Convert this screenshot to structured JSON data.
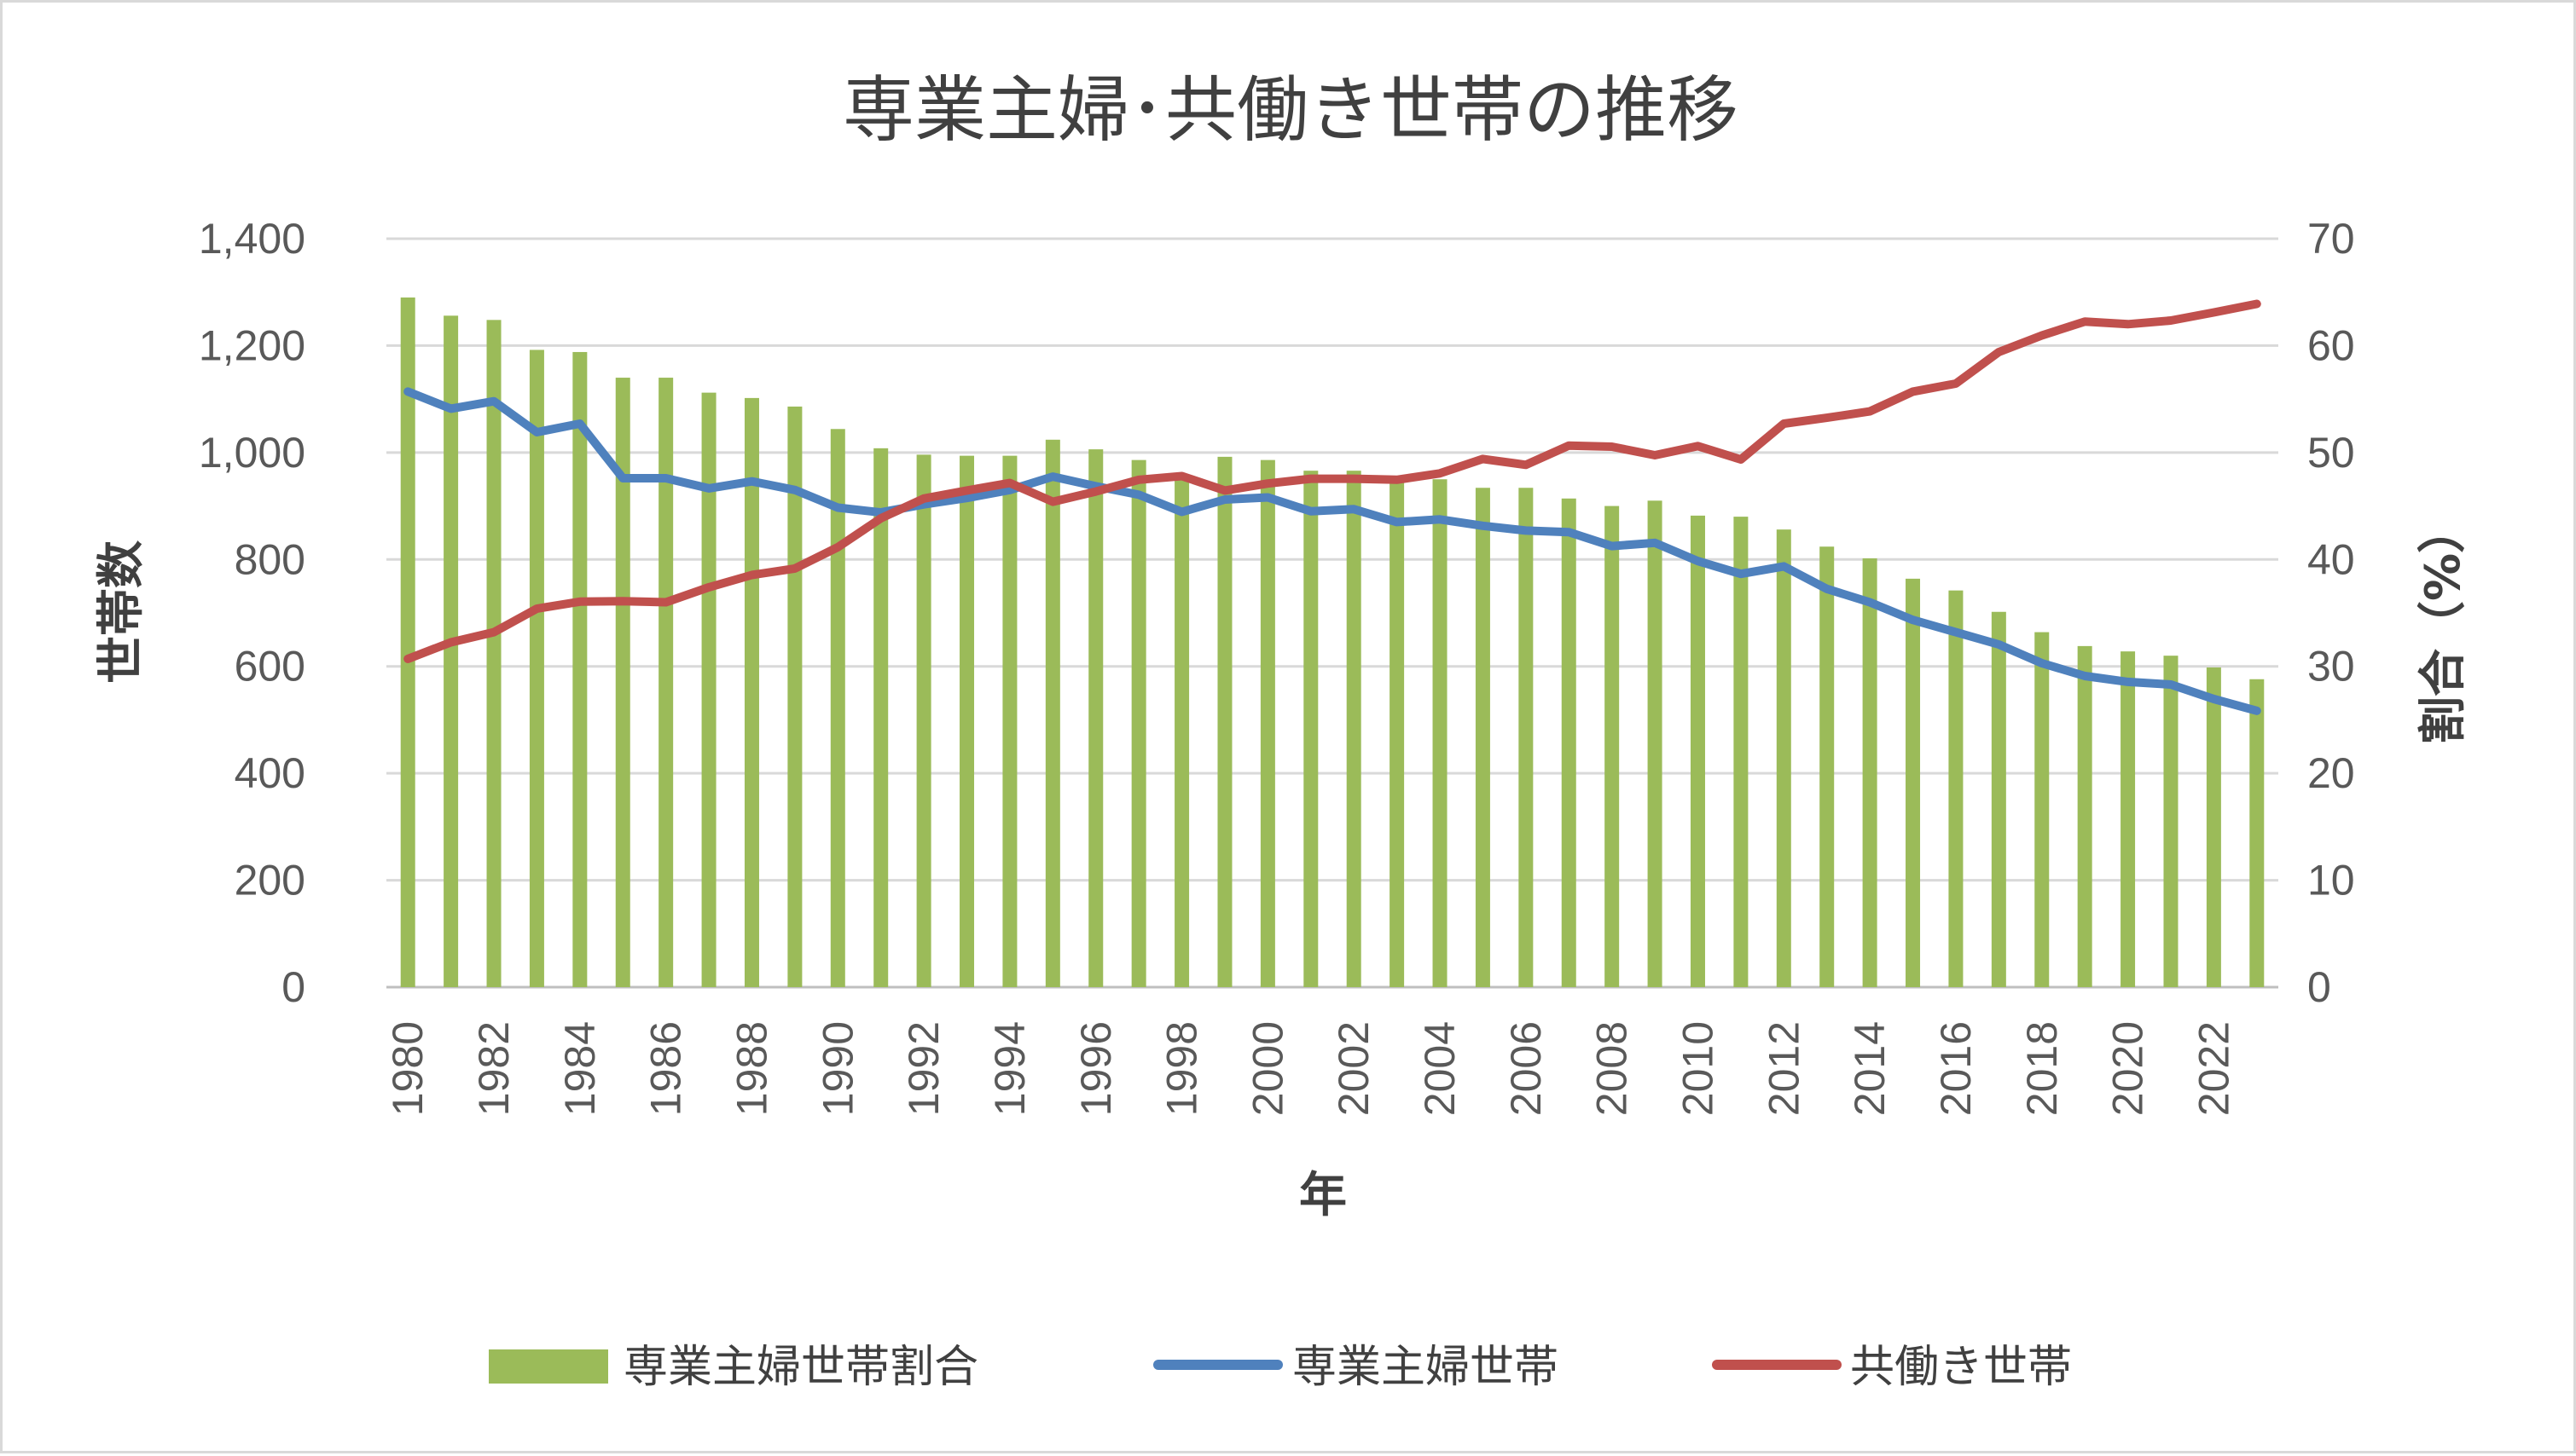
{
  "chart_data": {
    "type": "bar+line",
    "title": "専業主婦･共働き世帯の推移",
    "xlabel": "年",
    "ylabel_left": "世帯数",
    "ylabel_right": "割合（%）",
    "ylim_left": [
      0,
      1400
    ],
    "ylim_right": [
      0,
      70
    ],
    "yticks_left": [
      "0",
      "200",
      "400",
      "600",
      "800",
      "1,000",
      "1,200",
      "1,400"
    ],
    "yticks_right": [
      "0",
      "10",
      "20",
      "30",
      "40",
      "50",
      "60",
      "70"
    ],
    "x": [
      1980,
      1981,
      1982,
      1983,
      1984,
      1985,
      1986,
      1987,
      1988,
      1989,
      1990,
      1991,
      1992,
      1993,
      1994,
      1995,
      1996,
      1997,
      1998,
      1999,
      2000,
      2001,
      2002,
      2003,
      2004,
      2005,
      2006,
      2007,
      2008,
      2009,
      2010,
      2011,
      2012,
      2013,
      2014,
      2015,
      2016,
      2017,
      2018,
      2019,
      2020,
      2021,
      2022,
      2023
    ],
    "xtick_labels": [
      "1980",
      "1982",
      "1984",
      "1986",
      "1988",
      "1990",
      "1992",
      "1994",
      "1996",
      "1998",
      "2000",
      "2002",
      "2004",
      "2006",
      "2008",
      "2010",
      "2012",
      "2014",
      "2016",
      "2018",
      "2020",
      "2022"
    ],
    "grid": true,
    "legend_position": "bottom",
    "series": [
      {
        "name": "専業主婦世帯割合",
        "kind": "bar",
        "axis": "right",
        "color": "#9bbb59",
        "values": [
          64.5,
          62.8,
          62.4,
          59.6,
          59.4,
          57.0,
          57.0,
          55.6,
          55.1,
          54.3,
          52.2,
          50.4,
          49.8,
          49.7,
          49.7,
          51.2,
          50.3,
          49.3,
          47.7,
          49.6,
          49.3,
          48.3,
          48.3,
          47.8,
          47.5,
          46.7,
          46.7,
          45.7,
          45.0,
          45.5,
          44.1,
          44.0,
          42.8,
          41.2,
          40.1,
          38.2,
          37.1,
          35.1,
          33.2,
          31.9,
          31.4,
          31.0,
          29.9,
          28.8
        ]
      },
      {
        "name": "専業主婦世帯",
        "kind": "line",
        "axis": "left",
        "color": "#4f81bd",
        "values": [
          1114,
          1082,
          1096,
          1038,
          1054,
          952,
          952,
          933,
          946,
          930,
          897,
          888,
          903,
          915,
          930,
          955,
          937,
          921,
          889,
          912,
          916,
          890,
          894,
          870,
          875,
          863,
          854,
          851,
          825,
          831,
          797,
          773,
          787,
          745,
          720,
          687,
          664,
          641,
          606,
          582,
          571,
          566,
          539,
          517
        ]
      },
      {
        "name": "共働き世帯",
        "kind": "line",
        "axis": "left",
        "color": "#c0504d",
        "values": [
          614,
          645,
          664,
          708,
          721,
          722,
          720,
          748,
          771,
          783,
          823,
          877,
          914,
          929,
          943,
          908,
          927,
          949,
          956,
          929,
          942,
          951,
          951,
          949,
          961,
          988,
          977,
          1013,
          1011,
          995,
          1012,
          987,
          1054,
          1065,
          1077,
          1114,
          1129,
          1188,
          1219,
          1245,
          1240,
          1247,
          1262,
          1278
        ]
      }
    ]
  }
}
